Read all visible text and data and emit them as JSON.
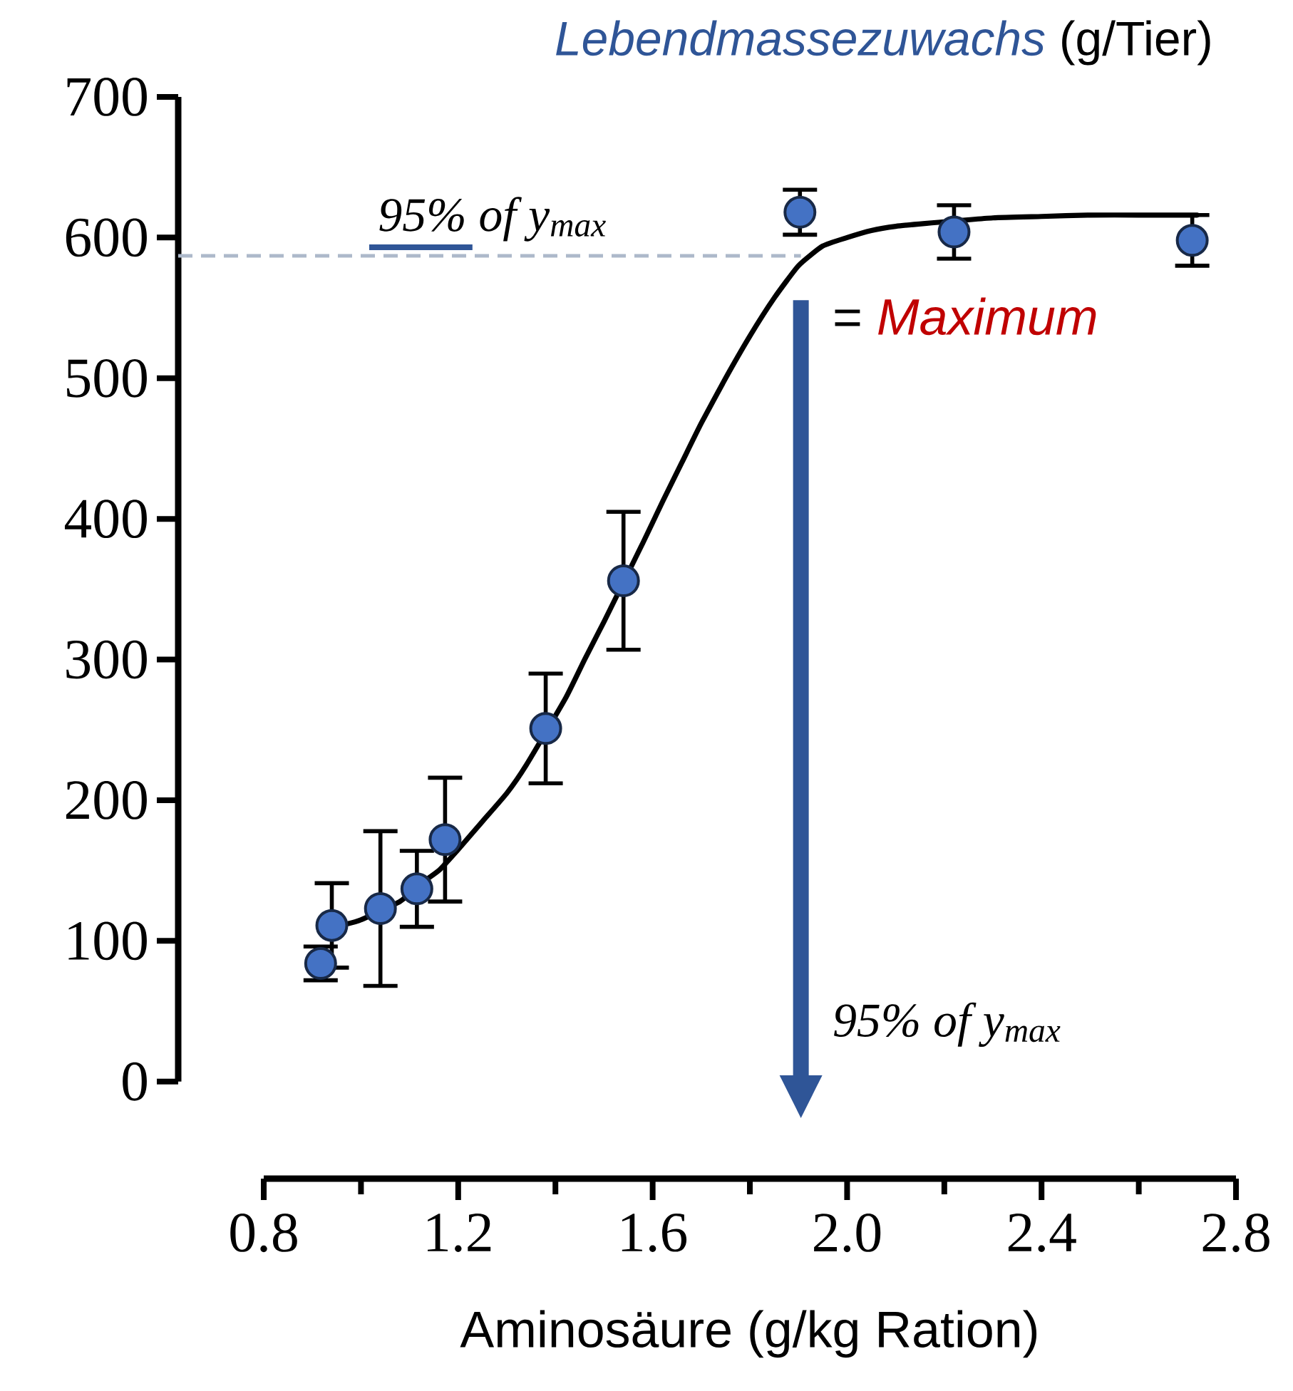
{
  "chart_data": {
    "type": "scatter",
    "title": "*Lebendmassezuwachs* (g/Tier)",
    "xlabel": "Aminosäure (g/kg Ration)",
    "xlim": [
      0.8,
      2.8
    ],
    "xticks": [
      {
        "value": 0.8,
        "label": "0.8"
      },
      {
        "value": 1.2,
        "label": "1.2"
      },
      {
        "value": 1.6,
        "label": "1.6"
      },
      {
        "value": 2.0,
        "label": "2.0"
      },
      {
        "value": 2.4,
        "label": "2.4"
      },
      {
        "value": 2.8,
        "label": "2.8"
      }
    ],
    "ylim": [
      0,
      700
    ],
    "yticks": [
      0,
      100,
      200,
      300,
      400,
      500,
      600,
      700
    ],
    "series": [
      {
        "color": "#4472c4",
        "marker": "circle",
        "x": [
          0.917,
          0.94,
          1.04,
          1.115,
          1.173,
          1.38,
          1.54,
          1.903,
          2.22,
          2.71
        ],
        "values": [
          84,
          111,
          123,
          137,
          172,
          251,
          356,
          618,
          604,
          598
        ],
        "errors": [
          12,
          30,
          55,
          27,
          44,
          39,
          49,
          16,
          19,
          18
        ]
      },
      {
        "type": "line",
        "color": "#000000",
        "marker": "none",
        "line_style": "solid",
        "x": [
          0.97,
          1.0,
          1.08,
          1.12,
          1.16,
          1.2,
          1.25,
          1.3,
          1.34,
          1.42,
          1.46,
          1.5,
          1.58,
          1.62,
          1.66,
          1.7,
          1.75,
          1.8,
          1.85,
          1.9,
          1.95,
          2.0,
          2.05,
          2.1,
          2.16,
          2.3,
          2.4,
          2.5,
          2.6,
          2.72
        ],
        "values": [
          112,
          115,
          128,
          140,
          150,
          165,
          185,
          205,
          225,
          272,
          300,
          327,
          383,
          412,
          440,
          468,
          500,
          530,
          557,
          580,
          594,
          600,
          605,
          608,
          610,
          614,
          615,
          616,
          616,
          616
        ]
      }
    ],
    "ref_lines": [
      {
        "axis": "y",
        "value": 587,
        "label": "95% of y$_{max}$",
        "color": "#adb9ca",
        "line_style": "dashed"
      },
      {
        "axis": "x",
        "value": 1.905,
        "label": "95% of y$_{max}$",
        "color": "#2f5597",
        "line_style": "solid"
      }
    ],
    "annotations": [
      "= *Maximum*"
    ]
  }
}
